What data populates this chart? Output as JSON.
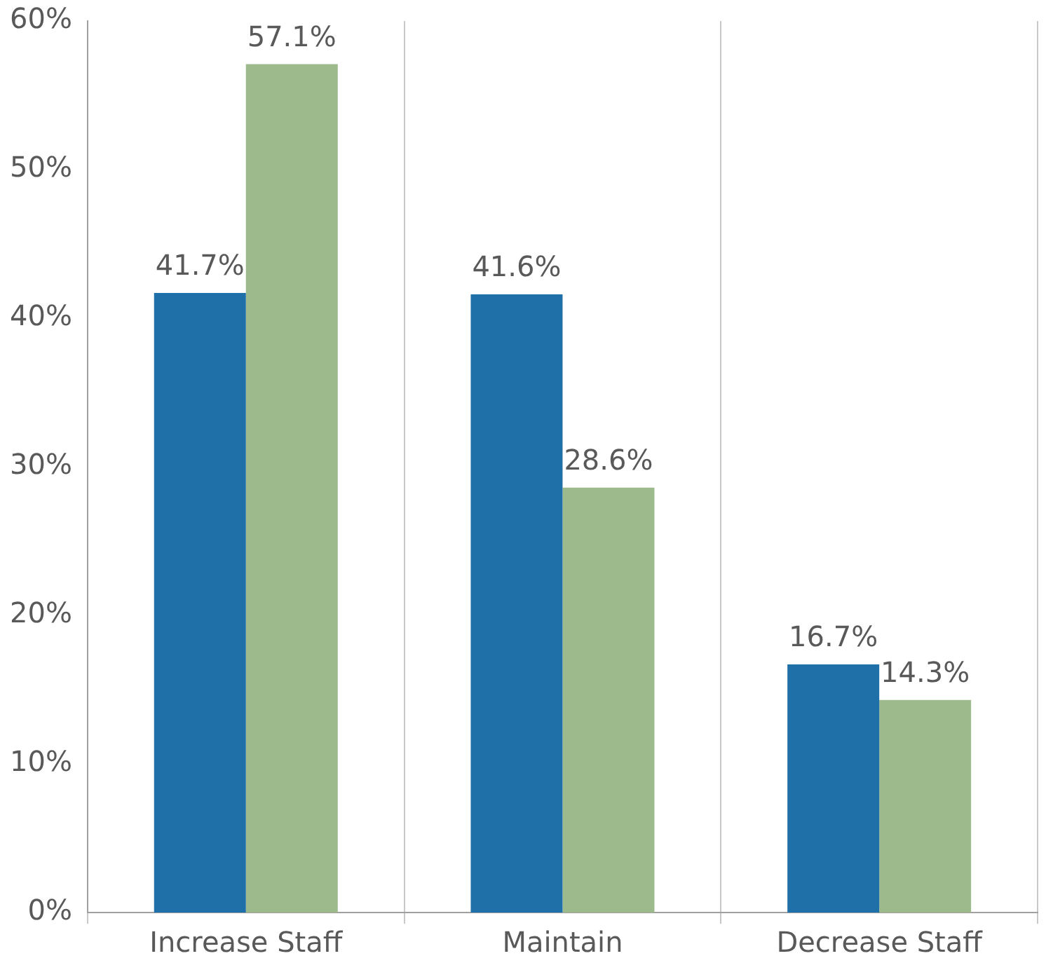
{
  "chart_data": {
    "type": "bar",
    "categories": [
      "Increase Staff",
      "Maintain",
      "Decrease Staff"
    ],
    "series": [
      {
        "color": "#1f6fa8",
        "values": [
          41.7,
          41.6,
          16.7
        ],
        "value_labels": [
          "41.7%",
          "41.6%",
          "16.7%"
        ]
      },
      {
        "color": "#9cba8c",
        "values": [
          57.1,
          28.6,
          14.3
        ],
        "value_labels": [
          "57.1%",
          "28.6%",
          "14.3%"
        ]
      }
    ],
    "ylim": [
      0,
      60
    ],
    "yticks": [
      {
        "value": 0,
        "label": "0%"
      },
      {
        "value": 10,
        "label": "10%"
      },
      {
        "value": 20,
        "label": "20%"
      },
      {
        "value": 30,
        "label": "30%"
      },
      {
        "value": 40,
        "label": "40%"
      },
      {
        "value": 50,
        "label": "50%"
      },
      {
        "value": 60,
        "label": "60%"
      }
    ],
    "grid": "x",
    "legend": false
  }
}
